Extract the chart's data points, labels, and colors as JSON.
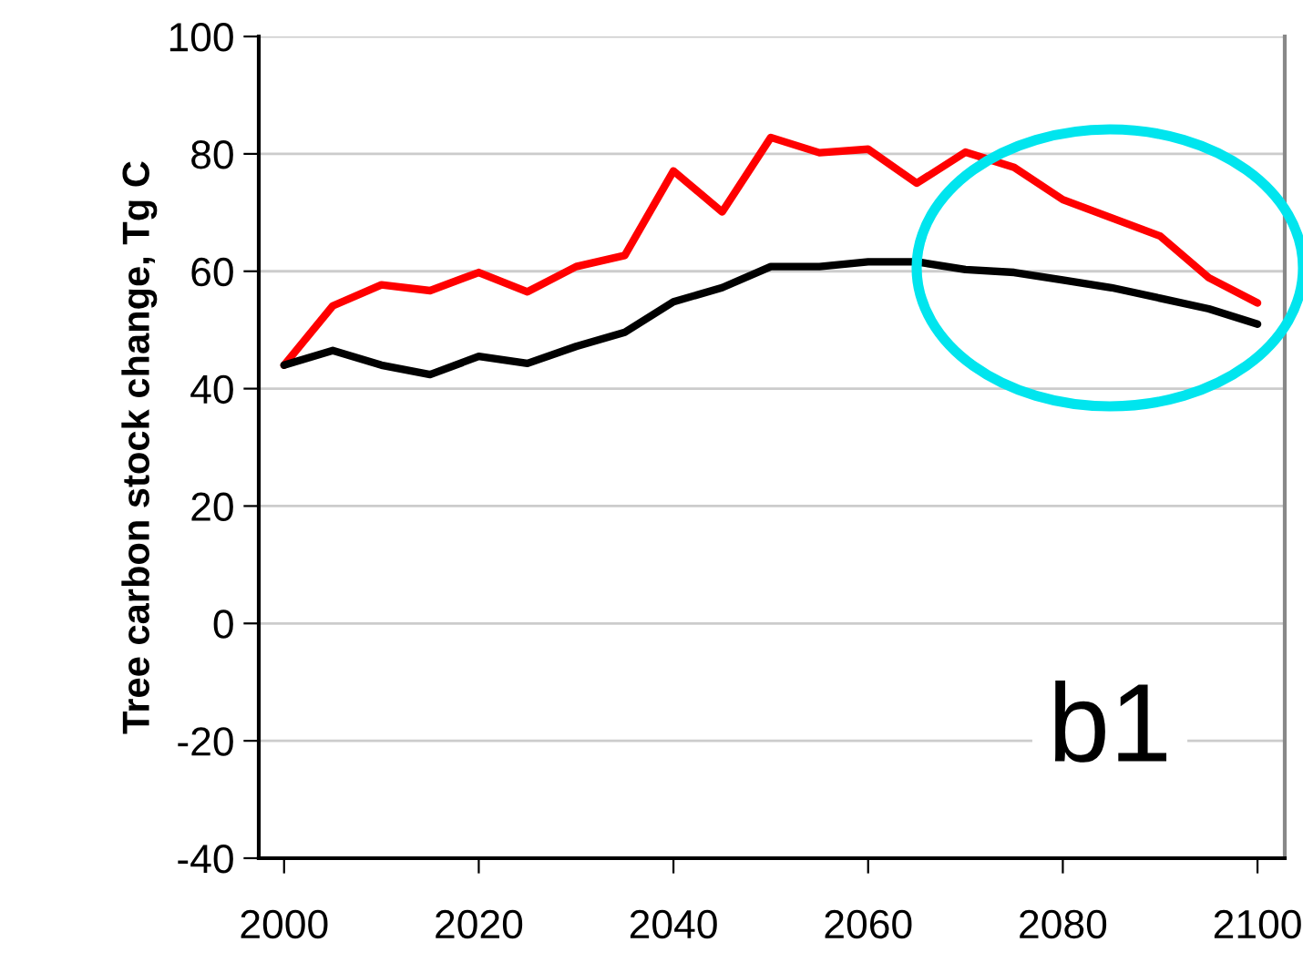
{
  "chart_data": {
    "type": "line",
    "ylabel": "Tree carbon stock change, Tg C",
    "x": [
      2000,
      2005,
      2010,
      2015,
      2020,
      2025,
      2030,
      2035,
      2040,
      2045,
      2050,
      2055,
      2060,
      2065,
      2070,
      2075,
      2080,
      2085,
      2090,
      2095,
      2100
    ],
    "series": [
      {
        "color": "#ff0000",
        "values": [
          44.0,
          54.1,
          57.7,
          56.7,
          59.8,
          56.5,
          60.8,
          62.7,
          77.1,
          70.1,
          82.8,
          80.2,
          80.8,
          75.0,
          80.3,
          77.7,
          72.2,
          69.1,
          66.0,
          58.9,
          54.6
        ]
      },
      {
        "color": "#000000",
        "values": [
          44.0,
          46.5,
          44.0,
          42.4,
          45.5,
          44.3,
          47.2,
          49.6,
          54.8,
          57.2,
          60.8,
          60.8,
          61.6,
          61.6,
          60.3,
          59.8,
          58.5,
          57.2,
          55.4,
          53.6,
          51.0
        ]
      }
    ],
    "xlim": [
      1997.4,
      2102.8
    ],
    "xticks": [
      2000,
      2020,
      2040,
      2060,
      2080,
      2100
    ],
    "ylim": [
      -40,
      100
    ],
    "yticks": [
      -40,
      -20,
      0,
      20,
      40,
      60,
      80,
      100
    ],
    "grid": "y",
    "marker": "none",
    "line_style": "solid",
    "annotations": [
      "b1"
    ]
  }
}
